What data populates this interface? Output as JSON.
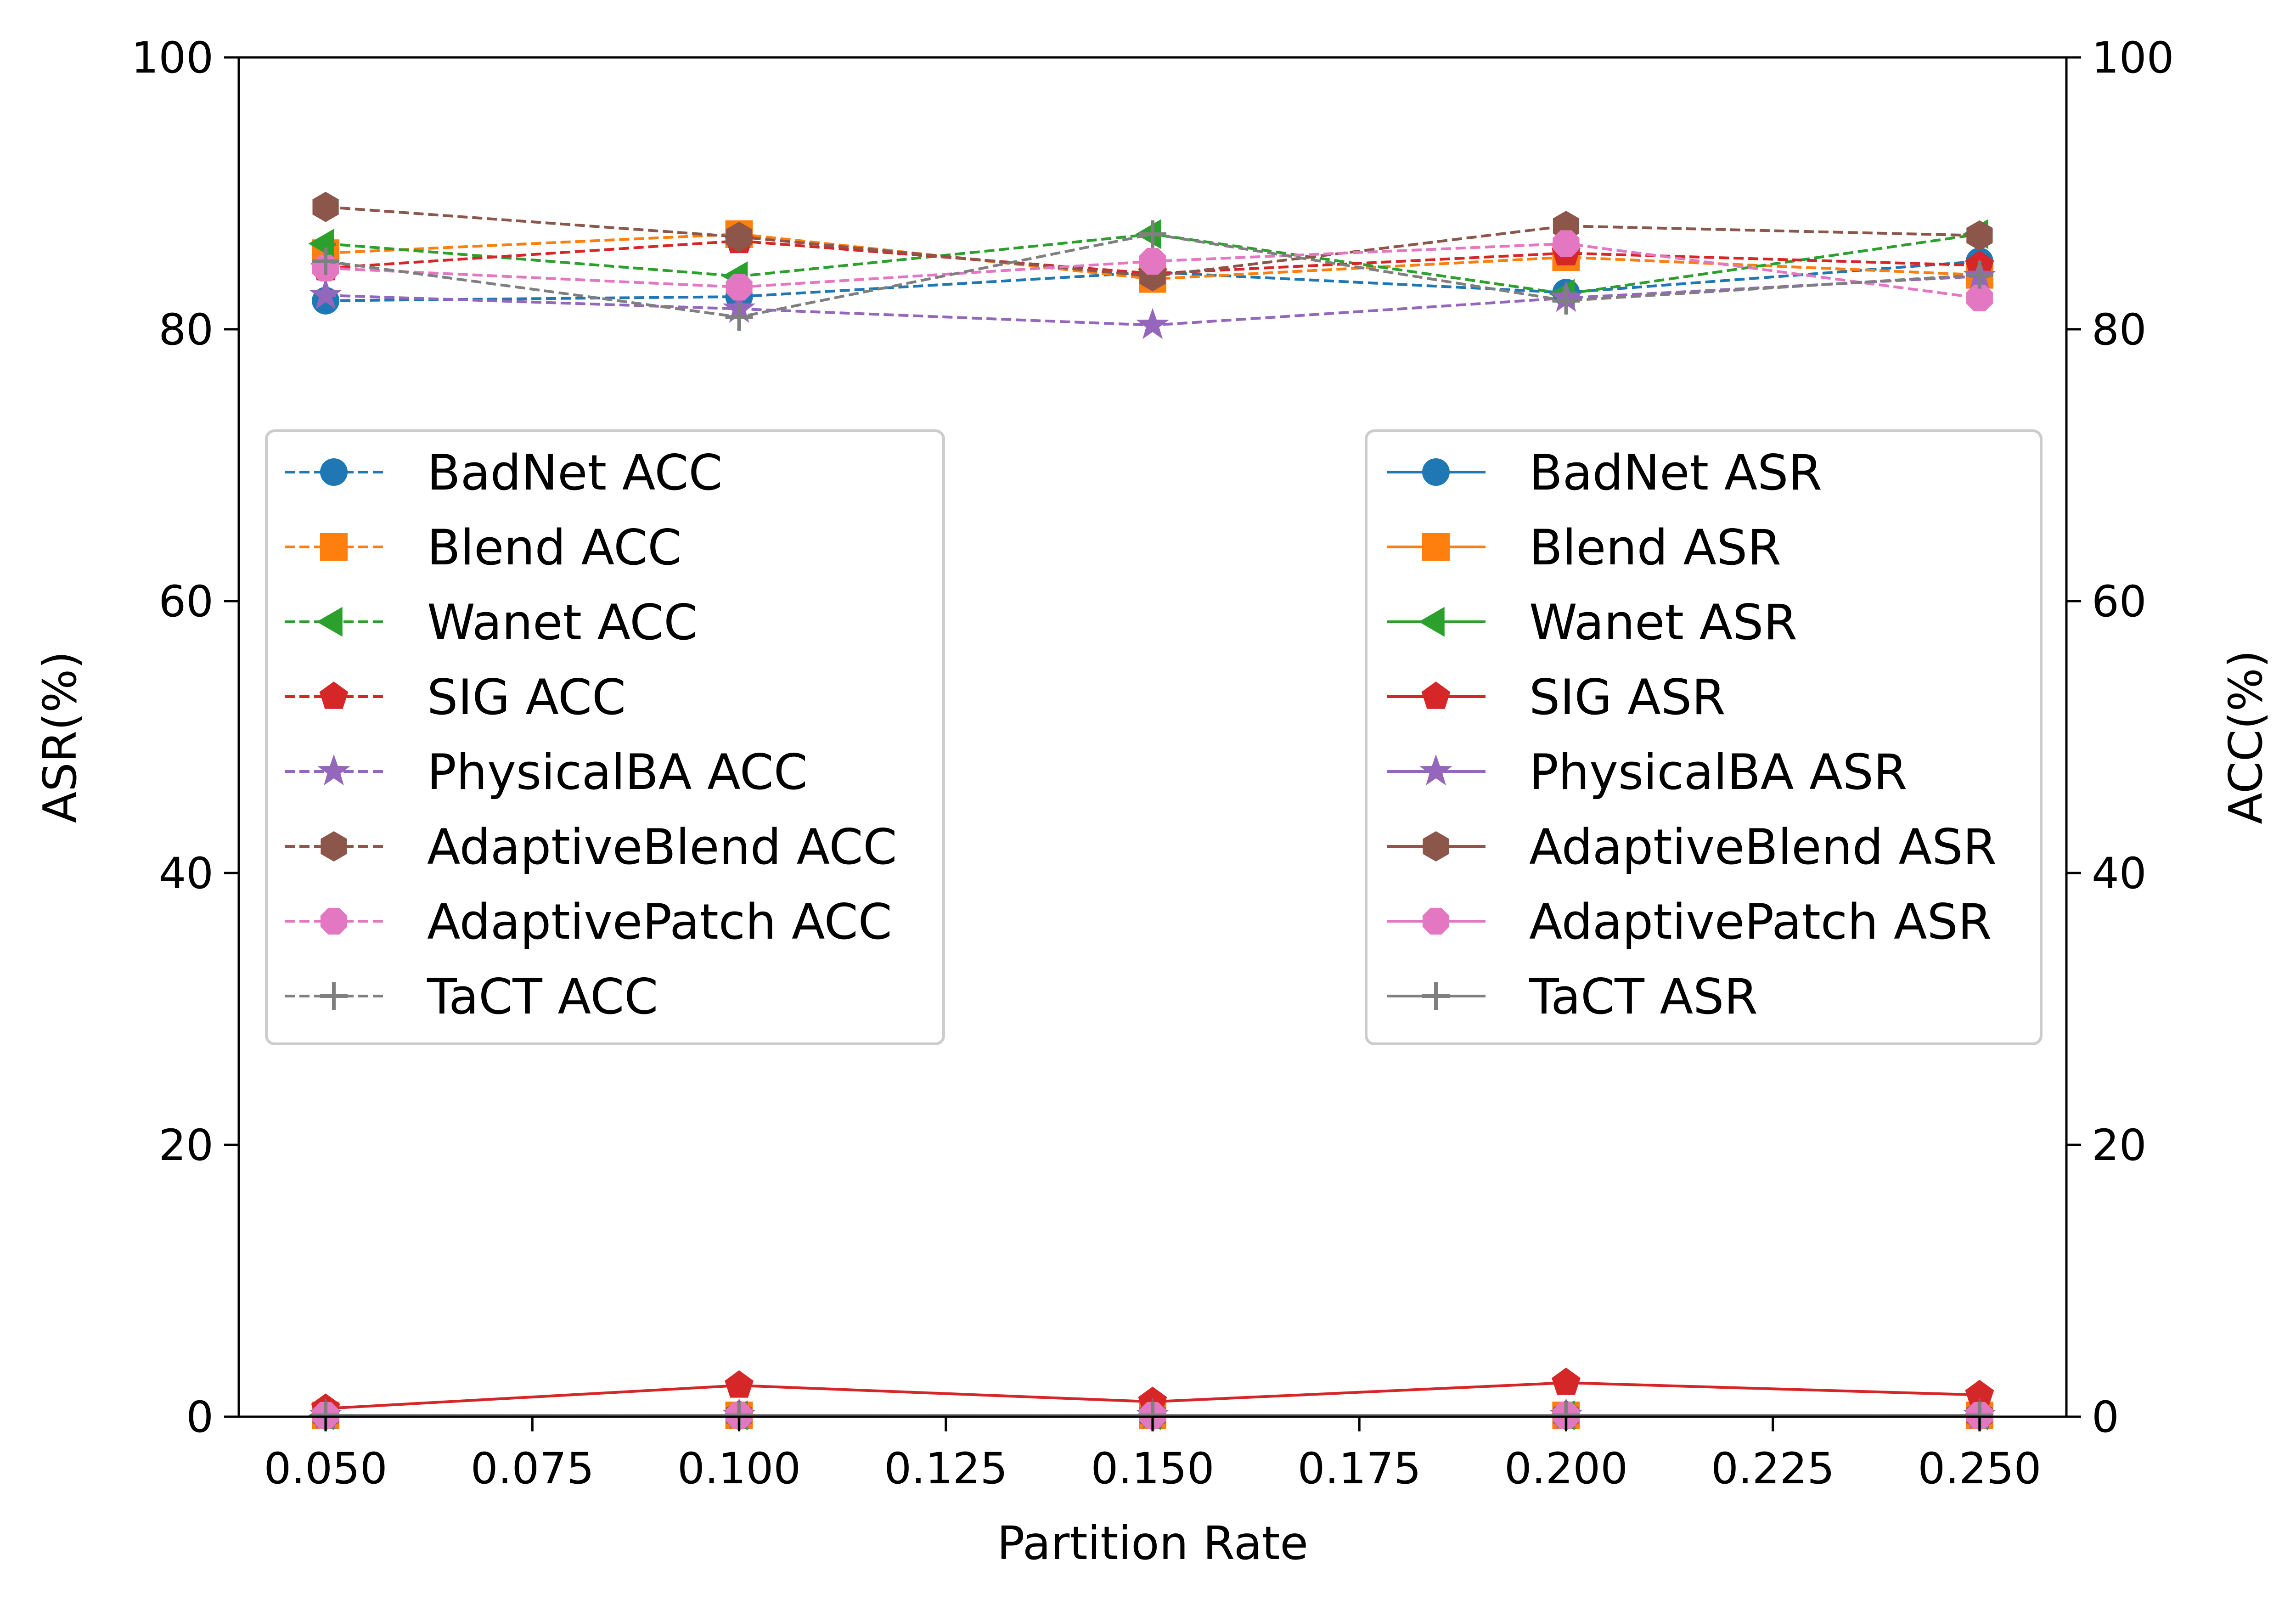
{
  "chart_data": {
    "type": "line",
    "x": [
      0.05,
      0.1,
      0.15,
      0.2,
      0.25
    ],
    "xlabel": "Partition Rate",
    "ylabel_left": "ASR(%)",
    "ylabel_right": "ACC(%)",
    "xlim": [
      0.0395,
      0.2605
    ],
    "ylim_left": [
      0,
      100
    ],
    "ylim_right": [
      0,
      100
    ],
    "x_ticks": [
      "0.050",
      "0.075",
      "0.100",
      "0.125",
      "0.150",
      "0.175",
      "0.200",
      "0.225",
      "0.250"
    ],
    "x_tick_values": [
      0.05,
      0.075,
      0.1,
      0.125,
      0.15,
      0.175,
      0.2,
      0.225,
      0.25
    ],
    "y_ticks_left": [
      "0",
      "20",
      "40",
      "60",
      "80",
      "100"
    ],
    "y_ticks_right": [
      "0",
      "20",
      "40",
      "60",
      "80",
      "100"
    ],
    "y_tick_values": [
      0,
      20,
      40,
      60,
      80,
      100
    ],
    "legend_acc_position": "center-left",
    "legend_asr_position": "center-right",
    "acc_series": [
      {
        "name": "BadNet ACC",
        "color": "#1f77b4",
        "marker": "circle",
        "values": [
          82.1,
          82.4,
          84.2,
          82.7,
          85.0
        ]
      },
      {
        "name": "Blend ACC",
        "color": "#ff7f0e",
        "marker": "square",
        "values": [
          85.6,
          87.0,
          83.7,
          85.3,
          84.0
        ]
      },
      {
        "name": "Wanet ACC",
        "color": "#2ca02c",
        "marker": "triangle-left",
        "values": [
          86.3,
          83.9,
          87.0,
          82.6,
          87.0
        ]
      },
      {
        "name": "SIG ACC",
        "color": "#d62728",
        "marker": "pentagon",
        "values": [
          84.5,
          86.5,
          84.1,
          85.6,
          84.7
        ]
      },
      {
        "name": "PhysicalBA ACC",
        "color": "#9467bd",
        "marker": "star",
        "values": [
          82.5,
          81.5,
          80.3,
          82.3,
          83.9
        ]
      },
      {
        "name": "AdaptiveBlend ACC",
        "color": "#8c564b",
        "marker": "hexagon",
        "values": [
          89.0,
          86.8,
          83.9,
          87.6,
          86.9
        ]
      },
      {
        "name": "AdaptivePatch ACC",
        "color": "#e377c2",
        "marker": "octagon",
        "values": [
          84.5,
          83.1,
          85.0,
          86.3,
          82.3
        ]
      },
      {
        "name": "TaCT ACC",
        "color": "#7f7f7f",
        "marker": "plus",
        "values": [
          85.0,
          80.9,
          87.0,
          82.1,
          84.0
        ]
      }
    ],
    "asr_series": [
      {
        "name": "BadNet ASR",
        "color": "#1f77b4",
        "marker": "circle",
        "values": [
          0.1,
          0.1,
          0.1,
          0.1,
          0.1
        ]
      },
      {
        "name": "Blend ASR",
        "color": "#ff7f0e",
        "marker": "square",
        "values": [
          0.1,
          0.1,
          0.1,
          0.1,
          0.1
        ]
      },
      {
        "name": "Wanet ASR",
        "color": "#2ca02c",
        "marker": "triangle-left",
        "values": [
          0.1,
          0.1,
          0.1,
          0.1,
          0.1
        ]
      },
      {
        "name": "SIG ASR",
        "color": "#d62728",
        "marker": "pentagon",
        "values": [
          0.6,
          2.3,
          1.1,
          2.5,
          1.6
        ]
      },
      {
        "name": "PhysicalBA ASR",
        "color": "#9467bd",
        "marker": "star",
        "values": [
          0.1,
          0.1,
          0.1,
          0.1,
          0.1
        ]
      },
      {
        "name": "AdaptiveBlend ASR",
        "color": "#8c564b",
        "marker": "hexagon",
        "values": [
          0.1,
          0.1,
          0.1,
          0.1,
          0.1
        ]
      },
      {
        "name": "AdaptivePatch ASR",
        "color": "#e377c2",
        "marker": "octagon",
        "values": [
          0.1,
          0.1,
          0.1,
          0.1,
          0.1
        ]
      },
      {
        "name": "TaCT ASR",
        "color": "#7f7f7f",
        "marker": "plus",
        "values": [
          0.1,
          0.1,
          0.1,
          0.1,
          0.1
        ]
      }
    ]
  }
}
